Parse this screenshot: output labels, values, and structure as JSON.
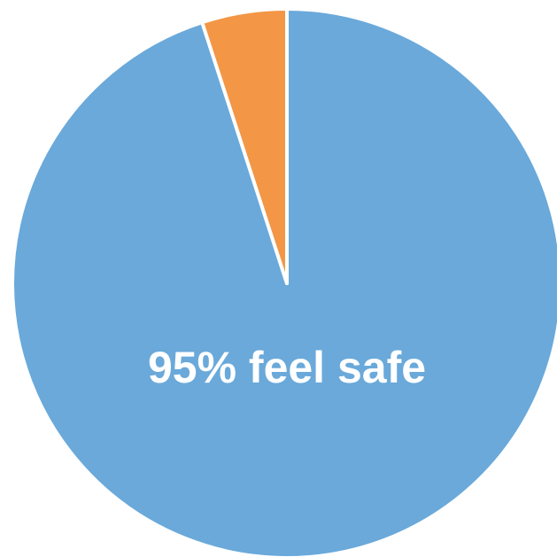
{
  "chart_data": {
    "type": "pie",
    "slices": [
      {
        "value": 95,
        "color": "#6aa9da",
        "label": "95% feel safe"
      },
      {
        "value": 5,
        "color": "#f39645"
      }
    ]
  }
}
